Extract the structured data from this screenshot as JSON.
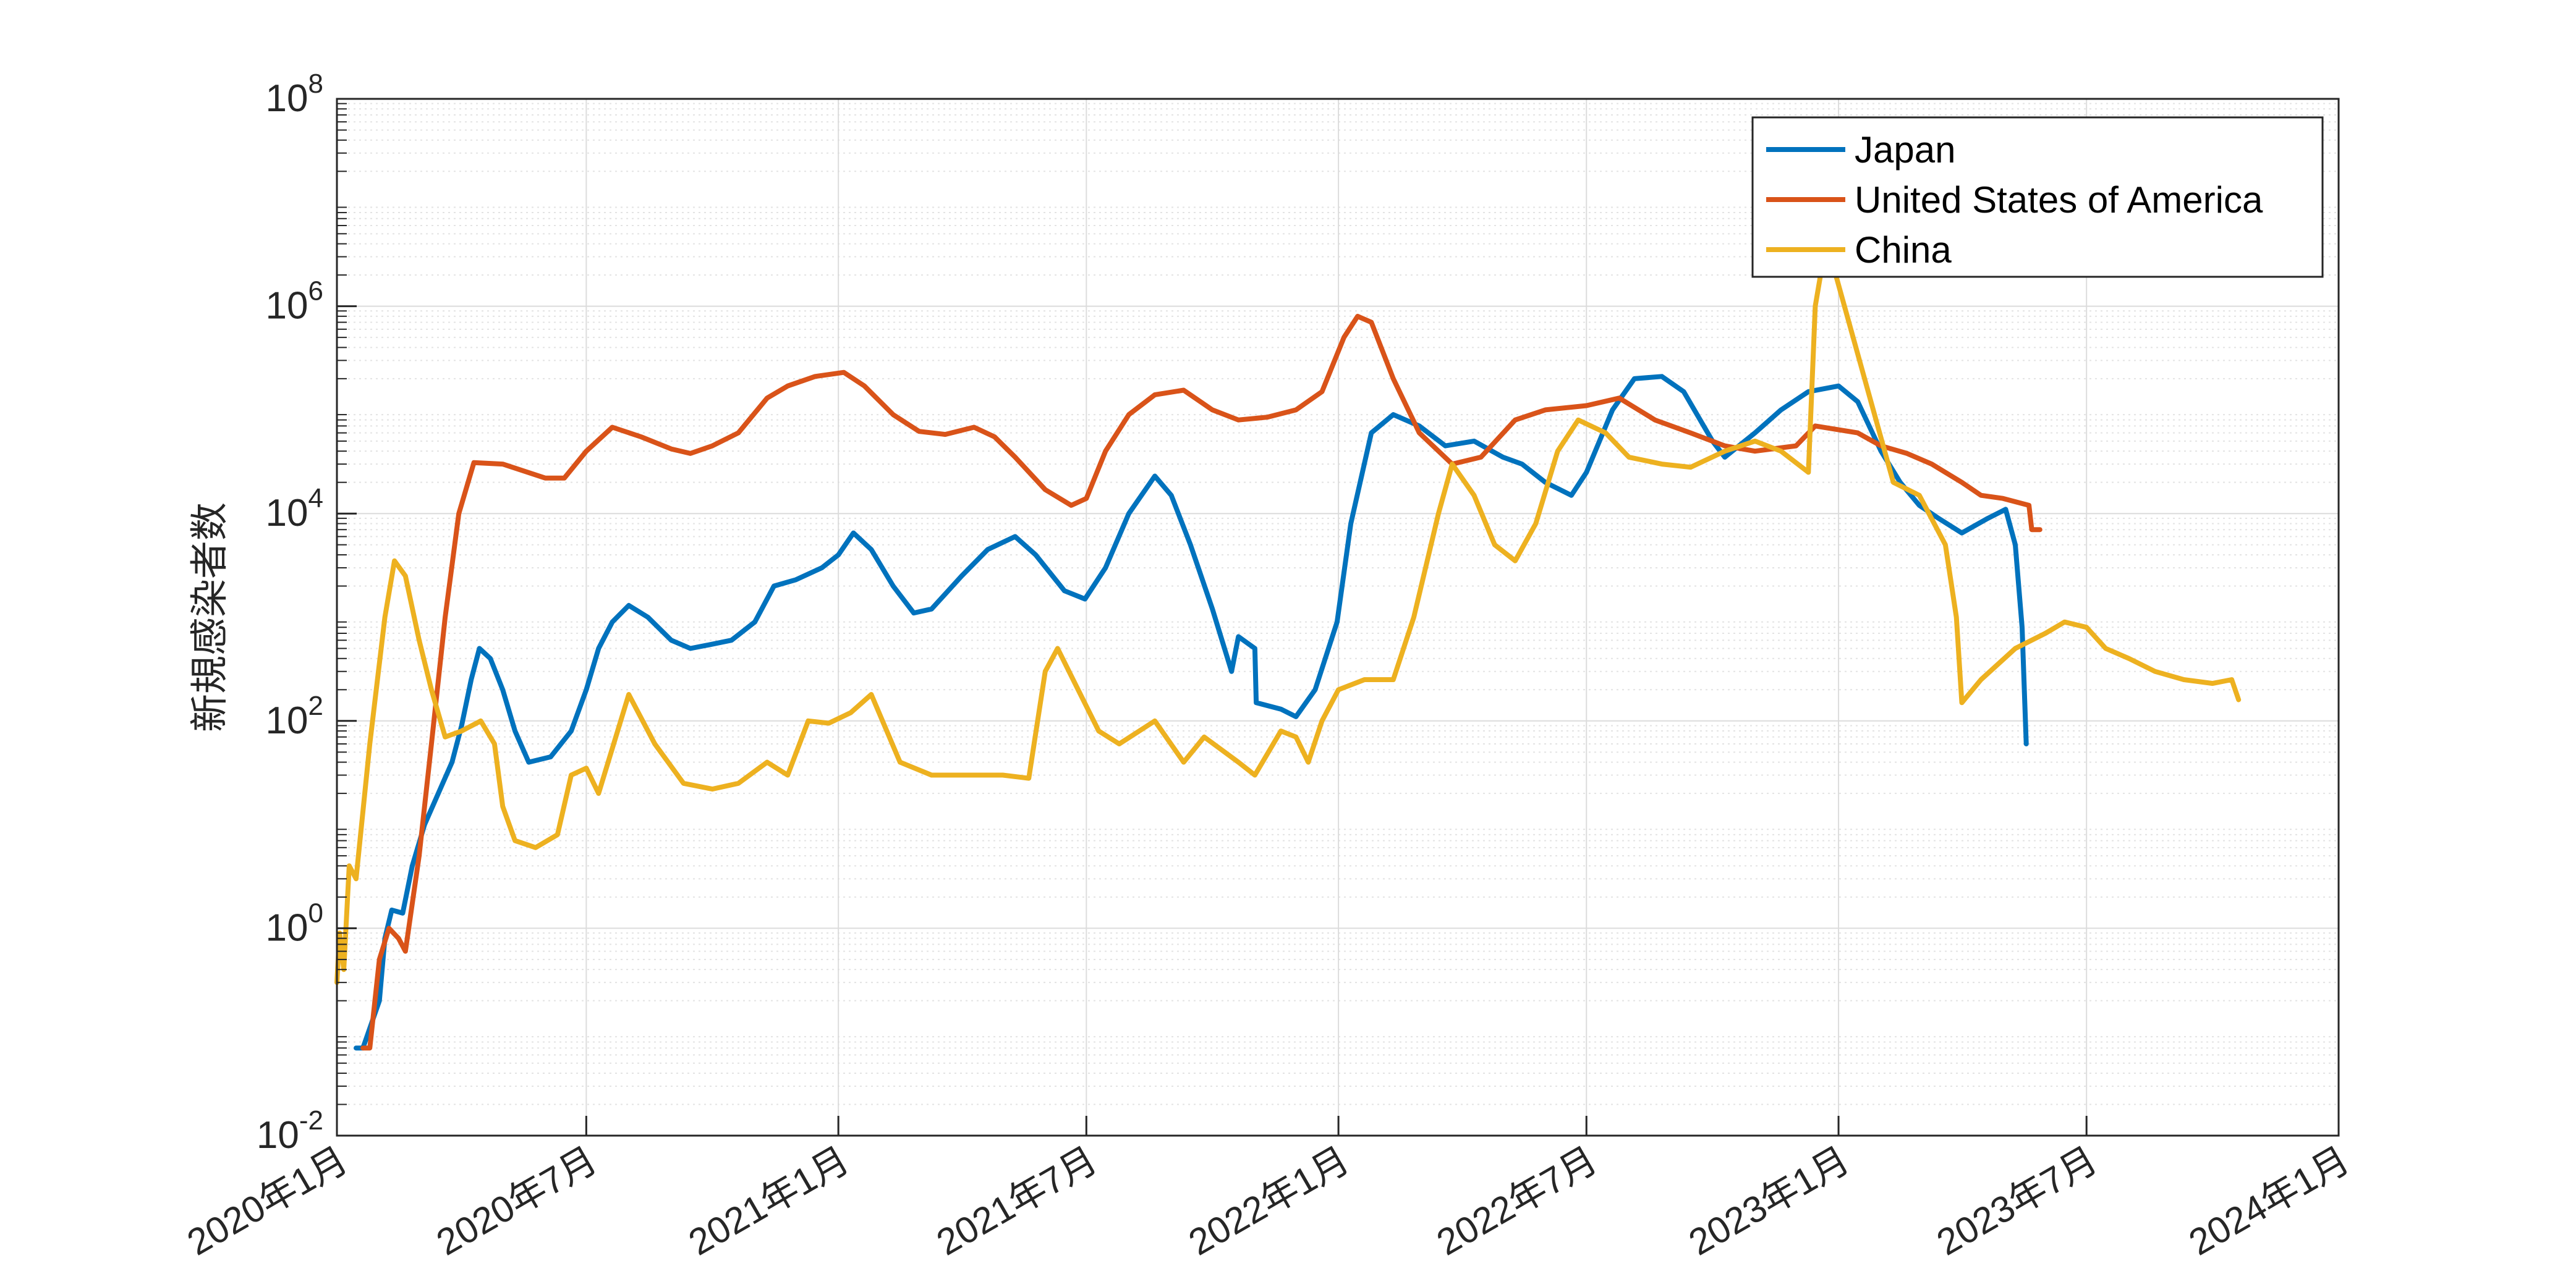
{
  "chart_data": {
    "type": "line",
    "title": "",
    "xlabel": "",
    "ylabel": "新規感染者数",
    "yscale": "log",
    "ylim": [
      0.01,
      100000000
    ],
    "xlim": [
      "2020-01-01",
      "2024-01-01"
    ],
    "grid": "on",
    "legend_position": "top-right",
    "x_ticks": [
      {
        "date": "2020-01-01",
        "label": "2020年1月"
      },
      {
        "date": "2020-07-01",
        "label": "2020年7月"
      },
      {
        "date": "2021-01-01",
        "label": "2021年1月"
      },
      {
        "date": "2021-07-01",
        "label": "2021年7月"
      },
      {
        "date": "2022-01-01",
        "label": "2022年1月"
      },
      {
        "date": "2022-07-01",
        "label": "2022年7月"
      },
      {
        "date": "2023-01-01",
        "label": "2023年1月"
      },
      {
        "date": "2023-07-01",
        "label": "2023年7月"
      },
      {
        "date": "2024-01-01",
        "label": "2024年1月"
      }
    ],
    "y_ticks": [
      {
        "value": 0.01,
        "base": "10",
        "exp": "-2"
      },
      {
        "value": 1,
        "base": "10",
        "exp": "0"
      },
      {
        "value": 100,
        "base": "10",
        "exp": "2"
      },
      {
        "value": 10000,
        "base": "10",
        "exp": "4"
      },
      {
        "value": 1000000,
        "base": "10",
        "exp": "6"
      },
      {
        "value": 100000000,
        "base": "10",
        "exp": "8"
      }
    ],
    "series": [
      {
        "name": "Japan",
        "color": "#0072BD",
        "points": [
          [
            "2020-01-15",
            0.07
          ],
          [
            "2020-01-20",
            0.07
          ],
          [
            "2020-02-01",
            0.2
          ],
          [
            "2020-02-05",
            0.8
          ],
          [
            "2020-02-10",
            1.5
          ],
          [
            "2020-02-18",
            1.4
          ],
          [
            "2020-02-25",
            4
          ],
          [
            "2020-03-05",
            10
          ],
          [
            "2020-03-15",
            20
          ],
          [
            "2020-03-25",
            40
          ],
          [
            "2020-04-01",
            90
          ],
          [
            "2020-04-08",
            250
          ],
          [
            "2020-04-14",
            500
          ],
          [
            "2020-04-22",
            400
          ],
          [
            "2020-05-01",
            200
          ],
          [
            "2020-05-10",
            80
          ],
          [
            "2020-05-20",
            40
          ],
          [
            "2020-06-05",
            45
          ],
          [
            "2020-06-20",
            80
          ],
          [
            "2020-07-01",
            200
          ],
          [
            "2020-07-10",
            500
          ],
          [
            "2020-07-20",
            900
          ],
          [
            "2020-08-01",
            1300
          ],
          [
            "2020-08-15",
            1000
          ],
          [
            "2020-09-01",
            600
          ],
          [
            "2020-09-15",
            500
          ],
          [
            "2020-10-01",
            550
          ],
          [
            "2020-10-15",
            600
          ],
          [
            "2020-11-01",
            900
          ],
          [
            "2020-11-15",
            2000
          ],
          [
            "2020-12-01",
            2300
          ],
          [
            "2020-12-20",
            3000
          ],
          [
            "2021-01-01",
            4000
          ],
          [
            "2021-01-12",
            6500
          ],
          [
            "2021-01-25",
            4500
          ],
          [
            "2021-02-10",
            2000
          ],
          [
            "2021-02-25",
            1100
          ],
          [
            "2021-03-10",
            1200
          ],
          [
            "2021-04-01",
            2500
          ],
          [
            "2021-04-20",
            4500
          ],
          [
            "2021-05-10",
            6000
          ],
          [
            "2021-05-25",
            4000
          ],
          [
            "2021-06-15",
            1800
          ],
          [
            "2021-06-30",
            1500
          ],
          [
            "2021-07-15",
            3000
          ],
          [
            "2021-08-01",
            10000
          ],
          [
            "2021-08-20",
            23000
          ],
          [
            "2021-09-01",
            15000
          ],
          [
            "2021-09-15",
            5000
          ],
          [
            "2021-10-01",
            1200
          ],
          [
            "2021-10-15",
            300
          ],
          [
            "2021-10-20",
            650
          ],
          [
            "2021-11-01",
            500
          ],
          [
            "2021-11-02",
            150
          ],
          [
            "2021-11-20",
            130
          ],
          [
            "2021-12-01",
            110
          ],
          [
            "2021-12-15",
            200
          ],
          [
            "2021-12-31",
            900
          ],
          [
            "2022-01-10",
            8000
          ],
          [
            "2022-01-25",
            60000
          ],
          [
            "2022-02-10",
            90000
          ],
          [
            "2022-03-01",
            70000
          ],
          [
            "2022-03-20",
            45000
          ],
          [
            "2022-04-10",
            50000
          ],
          [
            "2022-05-01",
            35000
          ],
          [
            "2022-05-15",
            30000
          ],
          [
            "2022-06-01",
            20000
          ],
          [
            "2022-06-20",
            15000
          ],
          [
            "2022-07-01",
            25000
          ],
          [
            "2022-07-20",
            100000
          ],
          [
            "2022-08-05",
            200000
          ],
          [
            "2022-08-25",
            210000
          ],
          [
            "2022-09-10",
            150000
          ],
          [
            "2022-10-01",
            50000
          ],
          [
            "2022-10-10",
            35000
          ],
          [
            "2022-11-01",
            60000
          ],
          [
            "2022-11-20",
            100000
          ],
          [
            "2022-12-10",
            150000
          ],
          [
            "2023-01-01",
            170000
          ],
          [
            "2023-01-15",
            120000
          ],
          [
            "2023-02-01",
            40000
          ],
          [
            "2023-02-15",
            20000
          ],
          [
            "2023-03-01",
            12000
          ],
          [
            "2023-03-15",
            9000
          ],
          [
            "2023-04-01",
            6500
          ],
          [
            "2023-04-20",
            9000
          ],
          [
            "2023-05-03",
            11000
          ],
          [
            "2023-05-10",
            5000
          ],
          [
            "2023-05-15",
            800
          ],
          [
            "2023-05-18",
            60
          ]
        ]
      },
      {
        "name": "United States of America",
        "color": "#D95319",
        "points": [
          [
            "2020-01-20",
            0.07
          ],
          [
            "2020-01-25",
            0.07
          ],
          [
            "2020-02-01",
            0.5
          ],
          [
            "2020-02-08",
            1
          ],
          [
            "2020-02-15",
            0.8
          ],
          [
            "2020-02-20",
            0.6
          ],
          [
            "2020-03-01",
            5
          ],
          [
            "2020-03-10",
            60
          ],
          [
            "2020-03-20",
            1000
          ],
          [
            "2020-03-30",
            10000
          ],
          [
            "2020-04-10",
            31000
          ],
          [
            "2020-05-01",
            30000
          ],
          [
            "2020-06-01",
            22000
          ],
          [
            "2020-06-15",
            22000
          ],
          [
            "2020-07-01",
            40000
          ],
          [
            "2020-07-20",
            68000
          ],
          [
            "2020-08-10",
            55000
          ],
          [
            "2020-09-01",
            42000
          ],
          [
            "2020-09-15",
            38000
          ],
          [
            "2020-10-01",
            45000
          ],
          [
            "2020-10-20",
            60000
          ],
          [
            "2020-11-10",
            130000
          ],
          [
            "2020-11-25",
            170000
          ],
          [
            "2020-12-15",
            210000
          ],
          [
            "2021-01-05",
            230000
          ],
          [
            "2021-01-20",
            170000
          ],
          [
            "2021-02-10",
            90000
          ],
          [
            "2021-03-01",
            62000
          ],
          [
            "2021-03-20",
            58000
          ],
          [
            "2021-04-10",
            68000
          ],
          [
            "2021-04-25",
            55000
          ],
          [
            "2021-05-10",
            35000
          ],
          [
            "2021-06-01",
            17000
          ],
          [
            "2021-06-20",
            12000
          ],
          [
            "2021-07-01",
            14000
          ],
          [
            "2021-07-15",
            40000
          ],
          [
            "2021-08-01",
            90000
          ],
          [
            "2021-08-20",
            140000
          ],
          [
            "2021-09-10",
            155000
          ],
          [
            "2021-10-01",
            100000
          ],
          [
            "2021-10-20",
            80000
          ],
          [
            "2021-11-10",
            85000
          ],
          [
            "2021-12-01",
            100000
          ],
          [
            "2021-12-20",
            150000
          ],
          [
            "2022-01-05",
            500000
          ],
          [
            "2022-01-15",
            800000
          ],
          [
            "2022-01-25",
            700000
          ],
          [
            "2022-02-10",
            200000
          ],
          [
            "2022-03-01",
            60000
          ],
          [
            "2022-03-25",
            30000
          ],
          [
            "2022-04-15",
            35000
          ],
          [
            "2022-05-10",
            80000
          ],
          [
            "2022-06-01",
            100000
          ],
          [
            "2022-07-01",
            110000
          ],
          [
            "2022-07-25",
            130000
          ],
          [
            "2022-08-20",
            80000
          ],
          [
            "2022-09-15",
            60000
          ],
          [
            "2022-10-10",
            45000
          ],
          [
            "2022-11-01",
            40000
          ],
          [
            "2022-12-01",
            45000
          ],
          [
            "2022-12-15",
            70000
          ],
          [
            "2023-01-15",
            60000
          ],
          [
            "2023-02-01",
            45000
          ],
          [
            "2023-02-20",
            38000
          ],
          [
            "2023-03-10",
            30000
          ],
          [
            "2023-04-01",
            20000
          ],
          [
            "2023-04-15",
            15000
          ],
          [
            "2023-05-01",
            14000
          ],
          [
            "2023-05-20",
            12000
          ],
          [
            "2023-05-22",
            7000
          ],
          [
            "2023-05-28",
            7000
          ]
        ]
      },
      {
        "name": "China",
        "color": "#EDB120",
        "points": [
          [
            "2020-01-01",
            0.3
          ],
          [
            "2020-01-03",
            0.9
          ],
          [
            "2020-01-06",
            0.4
          ],
          [
            "2020-01-10",
            4
          ],
          [
            "2020-01-15",
            3
          ],
          [
            "2020-01-25",
            60
          ],
          [
            "2020-02-05",
            1000
          ],
          [
            "2020-02-12",
            3500
          ],
          [
            "2020-02-20",
            2500
          ],
          [
            "2020-03-01",
            600
          ],
          [
            "2020-03-10",
            200
          ],
          [
            "2020-03-20",
            70
          ],
          [
            "2020-04-01",
            80
          ],
          [
            "2020-04-15",
            100
          ],
          [
            "2020-04-25",
            60
          ],
          [
            "2020-05-01",
            15
          ],
          [
            "2020-05-10",
            7
          ],
          [
            "2020-05-25",
            6
          ],
          [
            "2020-06-10",
            8
          ],
          [
            "2020-06-20",
            30
          ],
          [
            "2020-07-01",
            35
          ],
          [
            "2020-07-10",
            20
          ],
          [
            "2020-08-01",
            180
          ],
          [
            "2020-08-20",
            60
          ],
          [
            "2020-09-10",
            25
          ],
          [
            "2020-10-01",
            22
          ],
          [
            "2020-10-20",
            25
          ],
          [
            "2020-11-10",
            40
          ],
          [
            "2020-11-25",
            30
          ],
          [
            "2020-12-10",
            100
          ],
          [
            "2020-12-25",
            95
          ],
          [
            "2021-01-10",
            120
          ],
          [
            "2021-01-25",
            180
          ],
          [
            "2021-02-15",
            40
          ],
          [
            "2021-03-10",
            30
          ],
          [
            "2021-04-01",
            30
          ],
          [
            "2021-05-01",
            30
          ],
          [
            "2021-05-20",
            28
          ],
          [
            "2021-06-01",
            300
          ],
          [
            "2021-06-10",
            500
          ],
          [
            "2021-06-25",
            200
          ],
          [
            "2021-07-10",
            80
          ],
          [
            "2021-07-25",
            60
          ],
          [
            "2021-08-20",
            100
          ],
          [
            "2021-09-10",
            40
          ],
          [
            "2021-09-25",
            70
          ],
          [
            "2021-10-20",
            40
          ],
          [
            "2021-11-01",
            30
          ],
          [
            "2021-11-20",
            80
          ],
          [
            "2021-12-01",
            70
          ],
          [
            "2021-12-10",
            40
          ],
          [
            "2021-12-20",
            100
          ],
          [
            "2022-01-01",
            200
          ],
          [
            "2022-01-20",
            250
          ],
          [
            "2022-02-10",
            250
          ],
          [
            "2022-02-25",
            1000
          ],
          [
            "2022-03-15",
            10000
          ],
          [
            "2022-03-25",
            30000
          ],
          [
            "2022-04-10",
            15000
          ],
          [
            "2022-04-25",
            5000
          ],
          [
            "2022-05-10",
            3500
          ],
          [
            "2022-05-25",
            8000
          ],
          [
            "2022-06-10",
            40000
          ],
          [
            "2022-06-25",
            80000
          ],
          [
            "2022-07-15",
            60000
          ],
          [
            "2022-08-01",
            35000
          ],
          [
            "2022-08-25",
            30000
          ],
          [
            "2022-09-15",
            28000
          ],
          [
            "2022-10-10",
            40000
          ],
          [
            "2022-11-01",
            50000
          ],
          [
            "2022-11-20",
            40000
          ],
          [
            "2022-12-10",
            25000
          ],
          [
            "2022-12-15",
            1000000
          ],
          [
            "2022-12-22",
            3500000
          ],
          [
            "2022-12-30",
            2000000
          ],
          [
            "2023-01-20",
            200000
          ],
          [
            "2023-02-10",
            20000
          ],
          [
            "2023-03-01",
            15000
          ],
          [
            "2023-03-20",
            5000
          ],
          [
            "2023-03-28",
            1000
          ],
          [
            "2023-04-01",
            150
          ],
          [
            "2023-04-15",
            250
          ],
          [
            "2023-05-10",
            500
          ],
          [
            "2023-06-01",
            700
          ],
          [
            "2023-06-15",
            900
          ],
          [
            "2023-07-01",
            800
          ],
          [
            "2023-07-15",
            500
          ],
          [
            "2023-08-01",
            400
          ],
          [
            "2023-08-20",
            300
          ],
          [
            "2023-09-10",
            250
          ],
          [
            "2023-10-01",
            230
          ],
          [
            "2023-10-15",
            250
          ],
          [
            "2023-10-20",
            160
          ]
        ]
      }
    ]
  }
}
